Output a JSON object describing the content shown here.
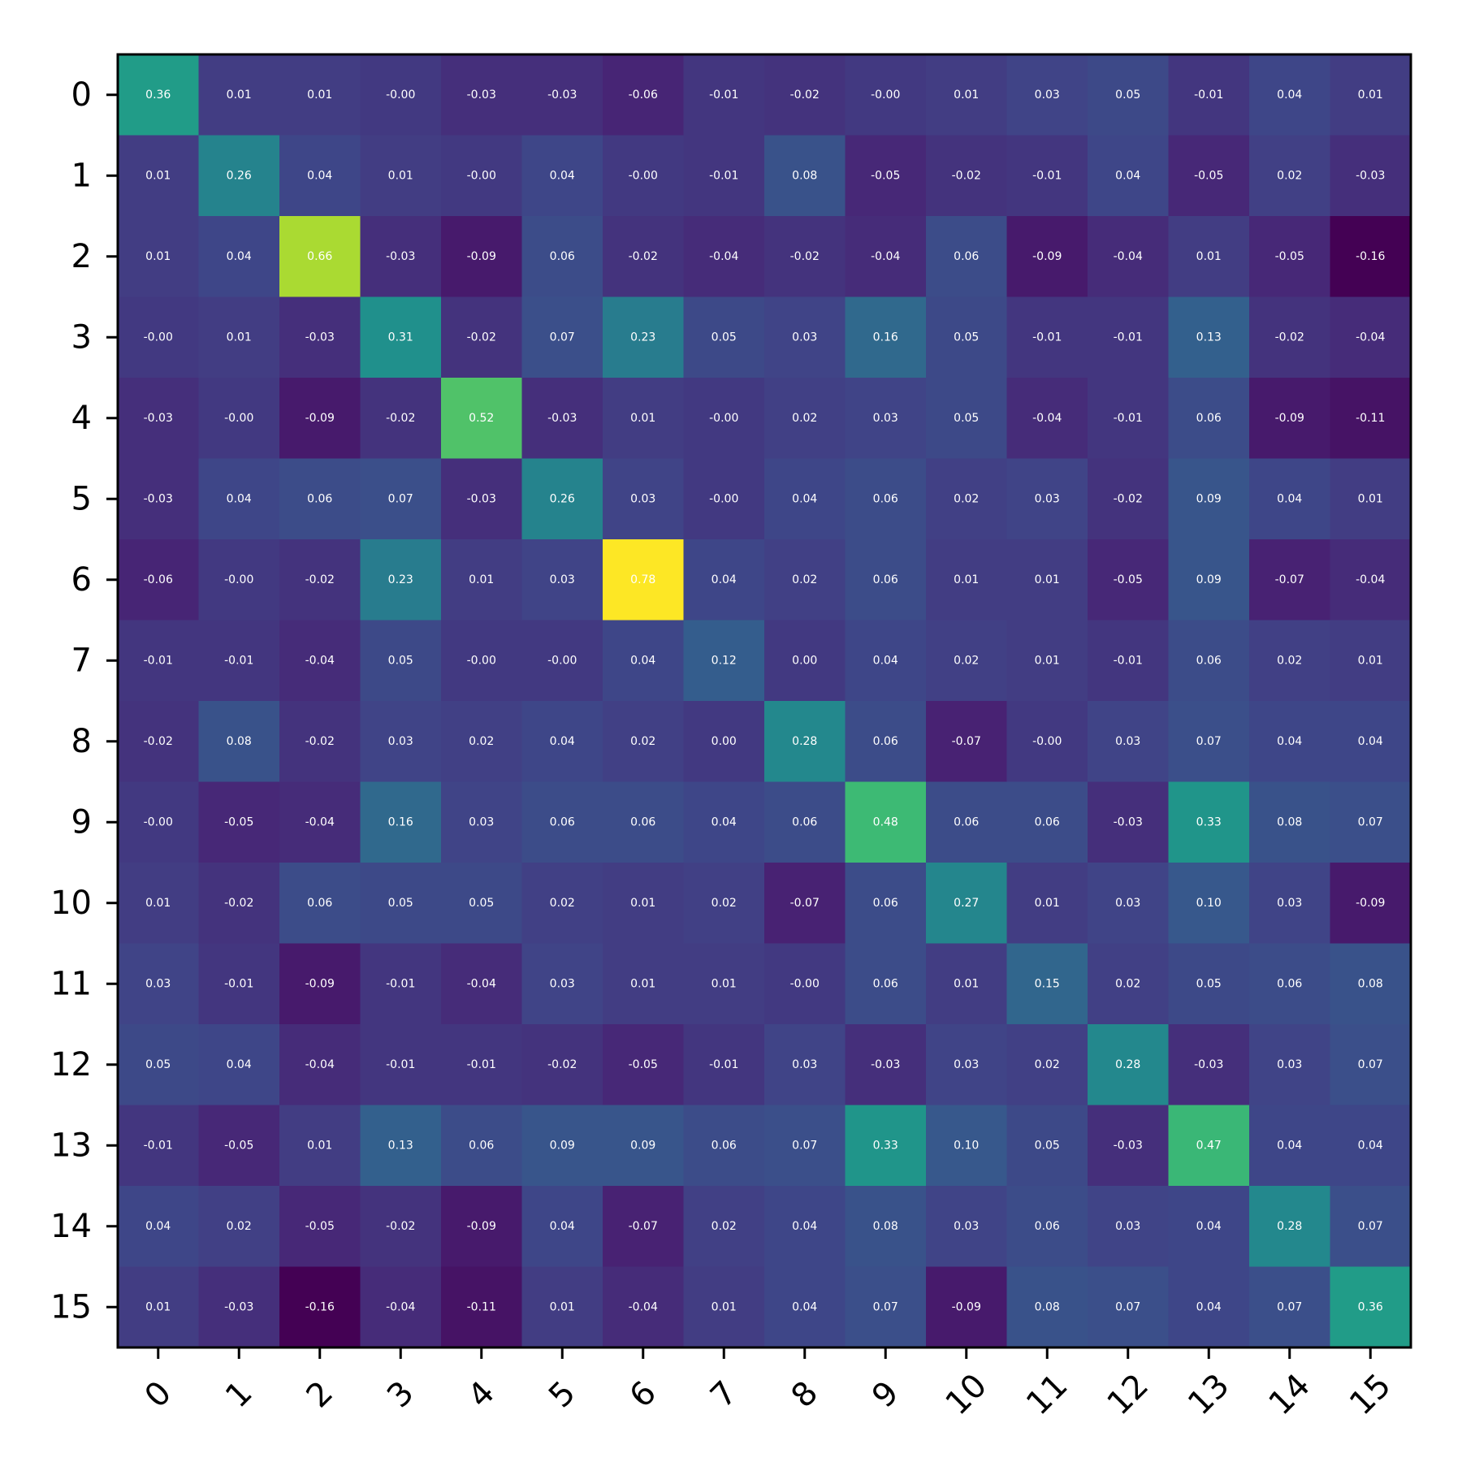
{
  "chart_data": {
    "type": "heatmap",
    "title": "",
    "xlabel": "",
    "ylabel": "",
    "x_categories": [
      "0",
      "1",
      "2",
      "3",
      "4",
      "5",
      "6",
      "7",
      "8",
      "9",
      "10",
      "11",
      "12",
      "13",
      "14",
      "15"
    ],
    "y_categories": [
      "0",
      "1",
      "2",
      "3",
      "4",
      "5",
      "6",
      "7",
      "8",
      "9",
      "10",
      "11",
      "12",
      "13",
      "14",
      "15"
    ],
    "colormap": "viridis",
    "color_range": [
      -0.16,
      0.78
    ],
    "cell_text_color": "#ffffff",
    "values": [
      [
        0.36,
        0.01,
        0.01,
        -0.0,
        -0.03,
        -0.03,
        -0.06,
        -0.01,
        -0.02,
        -0.0,
        0.01,
        0.03,
        0.05,
        -0.01,
        0.04,
        0.01
      ],
      [
        0.01,
        0.26,
        0.04,
        0.01,
        -0.0,
        0.04,
        -0.0,
        -0.01,
        0.08,
        -0.05,
        -0.02,
        -0.01,
        0.04,
        -0.05,
        0.02,
        -0.03
      ],
      [
        0.01,
        0.04,
        0.66,
        -0.03,
        -0.09,
        0.06,
        -0.02,
        -0.04,
        -0.02,
        -0.04,
        0.06,
        -0.09,
        -0.04,
        0.01,
        -0.05,
        -0.16
      ],
      [
        -0.0,
        0.01,
        -0.03,
        0.31,
        -0.02,
        0.07,
        0.23,
        0.05,
        0.03,
        0.16,
        0.05,
        -0.01,
        -0.01,
        0.13,
        -0.02,
        -0.04
      ],
      [
        -0.03,
        -0.0,
        -0.09,
        -0.02,
        0.52,
        -0.03,
        0.01,
        -0.0,
        0.02,
        0.03,
        0.05,
        -0.04,
        -0.01,
        0.06,
        -0.09,
        -0.11
      ],
      [
        -0.03,
        0.04,
        0.06,
        0.07,
        -0.03,
        0.26,
        0.03,
        -0.0,
        0.04,
        0.06,
        0.02,
        0.03,
        -0.02,
        0.09,
        0.04,
        0.01
      ],
      [
        -0.06,
        -0.0,
        -0.02,
        0.23,
        0.01,
        0.03,
        0.78,
        0.04,
        0.02,
        0.06,
        0.01,
        0.01,
        -0.05,
        0.09,
        -0.07,
        -0.04
      ],
      [
        -0.01,
        -0.01,
        -0.04,
        0.05,
        -0.0,
        -0.0,
        0.04,
        0.12,
        0.0,
        0.04,
        0.02,
        0.01,
        -0.01,
        0.06,
        0.02,
        0.01
      ],
      [
        -0.02,
        0.08,
        -0.02,
        0.03,
        0.02,
        0.04,
        0.02,
        0.0,
        0.28,
        0.06,
        -0.07,
        -0.0,
        0.03,
        0.07,
        0.04,
        0.04
      ],
      [
        -0.0,
        -0.05,
        -0.04,
        0.16,
        0.03,
        0.06,
        0.06,
        0.04,
        0.06,
        0.48,
        0.06,
        0.06,
        -0.03,
        0.33,
        0.08,
        0.07
      ],
      [
        0.01,
        -0.02,
        0.06,
        0.05,
        0.05,
        0.02,
        0.01,
        0.02,
        -0.07,
        0.06,
        0.27,
        0.01,
        0.03,
        0.1,
        0.03,
        -0.09
      ],
      [
        0.03,
        -0.01,
        -0.09,
        -0.01,
        -0.04,
        0.03,
        0.01,
        0.01,
        -0.0,
        0.06,
        0.01,
        0.15,
        0.02,
        0.05,
        0.06,
        0.08
      ],
      [
        0.05,
        0.04,
        -0.04,
        -0.01,
        -0.01,
        -0.02,
        -0.05,
        -0.01,
        0.03,
        -0.03,
        0.03,
        0.02,
        0.28,
        -0.03,
        0.03,
        0.07
      ],
      [
        -0.01,
        -0.05,
        0.01,
        0.13,
        0.06,
        0.09,
        0.09,
        0.06,
        0.07,
        0.33,
        0.1,
        0.05,
        -0.03,
        0.47,
        0.04,
        0.04
      ],
      [
        0.04,
        0.02,
        -0.05,
        -0.02,
        -0.09,
        0.04,
        -0.07,
        0.02,
        0.04,
        0.08,
        0.03,
        0.06,
        0.03,
        0.04,
        0.28,
        0.07
      ],
      [
        0.01,
        -0.03,
        -0.16,
        -0.04,
        -0.11,
        0.01,
        -0.04,
        0.01,
        0.04,
        0.07,
        -0.09,
        0.08,
        0.07,
        0.04,
        0.07,
        0.36
      ]
    ]
  }
}
